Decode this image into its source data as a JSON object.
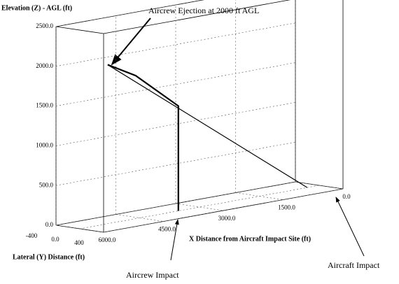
{
  "chart_data": {
    "type": "line3d",
    "annotations": [
      "Aircrew Ejection at 2000 ft AGL",
      "Aircrew Impact",
      "Aircraft Impact"
    ],
    "zlabel": "Elevation (Z) - AGL (ft)",
    "xlabel": "X Distance from Aircraft Impact Site (ft)",
    "ylabel": "Lateral (Y) Distance (ft)",
    "xlim": [
      0,
      6000
    ],
    "xticks": [
      {
        "value": 0,
        "label": "0.0"
      },
      {
        "value": 1500,
        "label": "1500.0"
      },
      {
        "value": 3000,
        "label": "3000.0"
      },
      {
        "value": 4500,
        "label": "4500.0"
      },
      {
        "value": 6000,
        "label": "6000.0"
      }
    ],
    "ylim": [
      -400,
      400
    ],
    "yticks": [
      -400,
      {
        "value": 0,
        "label": "0.0"
      },
      400
    ],
    "zlim": [
      0,
      2500
    ],
    "zticks": [
      {
        "value": 0,
        "label": "0.0"
      },
      {
        "value": 500,
        "label": "500.0"
      },
      {
        "value": 1000,
        "label": "1000.0"
      },
      {
        "value": 1500,
        "label": "1500.0"
      },
      {
        "value": 2000,
        "label": "2000.0"
      },
      {
        "value": 2500,
        "label": "2500.0"
      }
    ],
    "grid": true,
    "series": [
      {
        "color": "#000000",
        "x": [
          5300,
          300
        ],
        "y": [
          0,
          0
        ],
        "z": [
          2000,
          0
        ]
      },
      {
        "color": "#000000",
        "x": [
          5300,
          4600,
          3530,
          3530
        ],
        "y": [
          0,
          0,
          0,
          0
        ],
        "z": [
          2000,
          1800,
          1320,
          0
        ]
      }
    ]
  }
}
